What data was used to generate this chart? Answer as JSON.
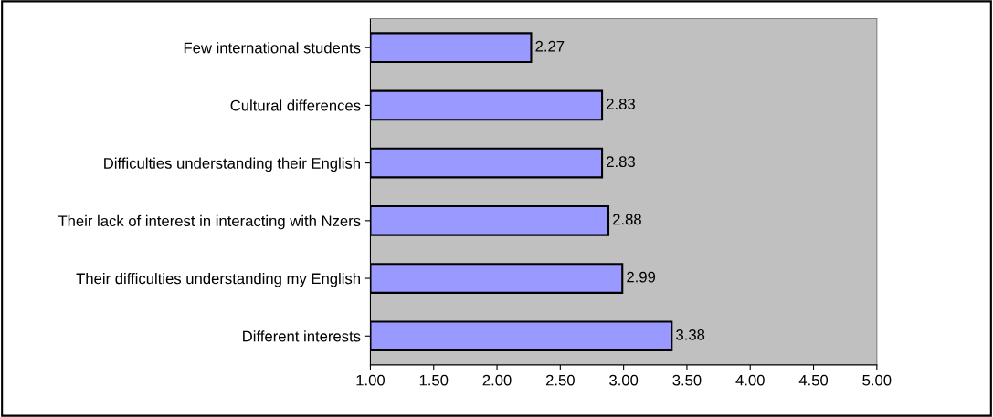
{
  "chart_data": {
    "type": "bar",
    "orientation": "horizontal",
    "categories": [
      "Few international students",
      "Cultural differences",
      "Difficulties understanding their English",
      "Their lack of interest in interacting with Nzers",
      "Their difficulties understanding my English",
      "Different interests"
    ],
    "values": [
      2.27,
      2.83,
      2.83,
      2.88,
      2.99,
      3.38
    ],
    "color": "#9999ff",
    "xlim": [
      1,
      5
    ],
    "xticks": [
      {
        "value": 1,
        "label": "1.00"
      },
      {
        "value": 1.5,
        "label": "1.50"
      },
      {
        "value": 2,
        "label": "2.00"
      },
      {
        "value": 2.5,
        "label": "2.50"
      },
      {
        "value": 3,
        "label": "3.00"
      },
      {
        "value": 3.5,
        "label": "3.50"
      },
      {
        "value": 4,
        "label": "4.00"
      },
      {
        "value": 4.5,
        "label": "4.50"
      },
      {
        "value": 5,
        "label": "5.00"
      }
    ],
    "data_labels": true,
    "grid": false,
    "legend": false
  }
}
